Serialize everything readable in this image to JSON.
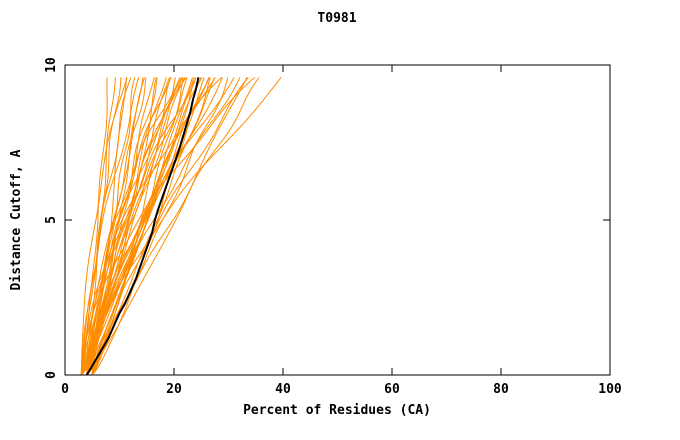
{
  "chart_data": {
    "type": "line",
    "title": "T0981",
    "xlabel": "Percent of Residues (CA)",
    "ylabel": "Distance Cutoff, A",
    "xlim": [
      0,
      100
    ],
    "ylim": [
      0,
      10
    ],
    "x_ticks": [
      0,
      20,
      40,
      60,
      80,
      100
    ],
    "y_ticks": [
      0,
      5,
      10
    ],
    "grid": false,
    "legend": "none",
    "colors": {
      "model_curves": "#ff8c00",
      "median_curve": "#000000",
      "frame": "#000000",
      "text": "#000000"
    },
    "curve_y_max": 9.6,
    "model_curve_format": "[x_start, x_end, shape_exponent, wiggle_amp, wiggle_freq, wiggle_phase] ; x(y) = x_start + (x_end - x_start) * (y / curve_y_max)^shape_exponent + wiggle_amp * sin(wiggle_freq * y + wiggle_phase)",
    "model_curves": [
      [
        3,
        8,
        0.8,
        0.3,
        1.7,
        0.5
      ],
      [
        3,
        10,
        1.0,
        0.4,
        2.1,
        1.2
      ],
      [
        4,
        11,
        0.7,
        0.3,
        1.3,
        2.0
      ],
      [
        3,
        12,
        1.3,
        0.5,
        1.9,
        0.8
      ],
      [
        4,
        13,
        0.9,
        0.4,
        2.3,
        2.5
      ],
      [
        3,
        14,
        1.5,
        0.5,
        1.5,
        3.1
      ],
      [
        4,
        14,
        0.8,
        0.3,
        2.0,
        1.7
      ],
      [
        3,
        15,
        1.1,
        0.6,
        1.2,
        0.3
      ],
      [
        4,
        16,
        0.9,
        0.4,
        1.8,
        2.9
      ],
      [
        5,
        17,
        1.3,
        0.5,
        2.2,
        1.1
      ],
      [
        3,
        17,
        0.7,
        0.3,
        1.6,
        2.2
      ],
      [
        4,
        18,
        1.0,
        0.6,
        1.4,
        0.6
      ],
      [
        5,
        19,
        1.6,
        0.5,
        2.0,
        1.9
      ],
      [
        3,
        19,
        0.9,
        0.4,
        1.7,
        3.0
      ],
      [
        4,
        20,
        1.2,
        0.6,
        2.4,
        0.9
      ],
      [
        5,
        20,
        0.8,
        0.4,
        1.3,
        2.6
      ],
      [
        3,
        21,
        1.0,
        0.5,
        1.9,
        1.4
      ],
      [
        4,
        21,
        1.4,
        0.6,
        1.5,
        0.2
      ],
      [
        5,
        22,
        0.9,
        0.4,
        2.1,
        2.8
      ],
      [
        4,
        22,
        1.1,
        0.5,
        1.8,
        1.6
      ],
      [
        3,
        23,
        0.8,
        0.4,
        1.4,
        0.7
      ],
      [
        4,
        23,
        1.3,
        0.6,
        2.2,
        2.3
      ],
      [
        5,
        24,
        1.0,
        0.5,
        1.6,
        1.0
      ],
      [
        4,
        24,
        1.6,
        0.6,
        2.0,
        2.7
      ],
      [
        3,
        24,
        0.9,
        0.4,
        1.2,
        0.4
      ],
      [
        4,
        25,
        1.1,
        0.5,
        1.8,
        1.8
      ],
      [
        5,
        25,
        0.8,
        0.4,
        2.3,
        3.0
      ],
      [
        4,
        26,
        1.2,
        0.6,
        1.5,
        0.6
      ],
      [
        3,
        26,
        1.0,
        0.5,
        1.9,
        2.1
      ],
      [
        5,
        27,
        1.4,
        0.6,
        1.3,
        1.3
      ],
      [
        4,
        27,
        0.9,
        0.4,
        2.1,
        2.9
      ],
      [
        3,
        28,
        1.1,
        0.5,
        1.7,
        0.8
      ],
      [
        4,
        29,
        1.3,
        0.6,
        1.4,
        2.4
      ],
      [
        5,
        30,
        1.0,
        0.5,
        2.2,
        1.1
      ],
      [
        4,
        31,
        1.5,
        0.6,
        1.6,
        0.3
      ],
      [
        3,
        32,
        1.2,
        0.5,
        2.0,
        2.6
      ],
      [
        4,
        33,
        0.9,
        0.4,
        1.3,
        1.5
      ],
      [
        5,
        34,
        1.3,
        0.6,
        1.8,
        0.9
      ],
      [
        4,
        36,
        1.1,
        0.5,
        2.3,
        2.2
      ],
      [
        3,
        40,
        1.4,
        0.6,
        1.5,
        1.9
      ],
      [
        4,
        9,
        1.0,
        0.3,
        1.9,
        2.8
      ],
      [
        3,
        11,
        1.8,
        0.4,
        1.4,
        0.5
      ],
      [
        5,
        21,
        2.0,
        0.5,
        2.1,
        1.7
      ],
      [
        4,
        29,
        2.0,
        0.6,
        1.6,
        3.0
      ],
      [
        3,
        35,
        1.7,
        0.5,
        1.9,
        0.2
      ],
      [
        4,
        15,
        1.2,
        0.4,
        2.2,
        1.3
      ],
      [
        5,
        26,
        1.1,
        0.5,
        1.5,
        2.5
      ],
      [
        3,
        22,
        1.5,
        0.5,
        2.0,
        0.1
      ]
    ],
    "median_curve": [
      [
        4,
        0
      ],
      [
        5,
        0.3
      ],
      [
        6,
        0.6
      ],
      [
        7,
        0.9
      ],
      [
        8,
        1.2
      ],
      [
        9,
        1.6
      ],
      [
        10,
        2.0
      ],
      [
        11,
        2.3
      ],
      [
        12,
        2.7
      ],
      [
        13,
        3.1
      ],
      [
        14,
        3.6
      ],
      [
        15,
        4.1
      ],
      [
        16,
        4.6
      ],
      [
        16.5,
        5.0
      ],
      [
        17,
        5.3
      ],
      [
        18,
        5.8
      ],
      [
        19,
        6.3
      ],
      [
        20,
        6.8
      ],
      [
        21,
        7.3
      ],
      [
        22,
        7.9
      ],
      [
        23,
        8.5
      ],
      [
        23.5,
        8.9
      ],
      [
        24,
        9.2
      ],
      [
        24.5,
        9.6
      ]
    ]
  }
}
